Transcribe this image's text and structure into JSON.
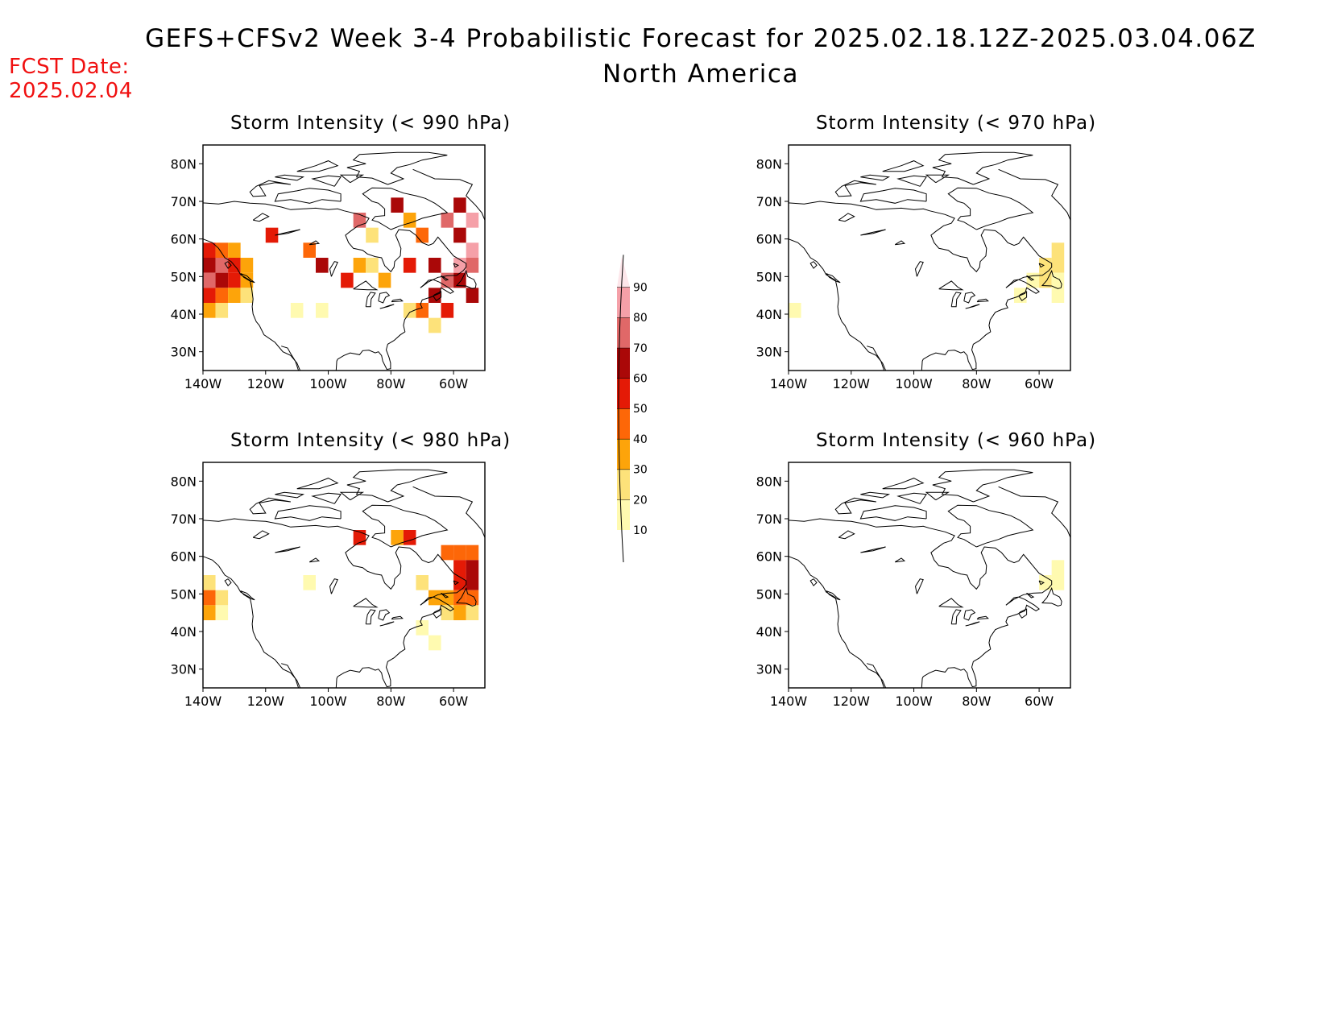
{
  "header": {
    "title": "GEFS+CFSv2 Week 3-4 Probabilistic Forecast for 2025.02.18.12Z-2025.03.04.06Z",
    "subtitle": "North America",
    "fcst_label": "FCST Date:",
    "fcst_value": "2025.02.04"
  },
  "map_axes": {
    "lon_range": [
      -140,
      -50
    ],
    "lat_range": [
      25,
      85
    ],
    "x_ticks": [
      "140W",
      "120W",
      "100W",
      "80W",
      "60W"
    ],
    "y_ticks": [
      "30N",
      "40N",
      "50N",
      "60N",
      "70N",
      "80N"
    ]
  },
  "colors": {
    "coastline": "#000000",
    "bins": [
      "#fffab0",
      "#fde27a",
      "#fda40a",
      "#fd6708",
      "#e41a06",
      "#aa0808",
      "#e06868",
      "#f5a0a8",
      "#fde6ea"
    ]
  },
  "colorbar": {
    "labels": [
      "10",
      "20",
      "30",
      "40",
      "50",
      "60",
      "70",
      "80",
      "90"
    ]
  },
  "panels": [
    {
      "id": "p990",
      "title": "Storm Intensity (< 990 hPa)",
      "cells": [
        {
          "lon": -138,
          "lat": 57,
          "v": 50
        },
        {
          "lon": -134,
          "lat": 57,
          "v": 40
        },
        {
          "lon": -130,
          "lat": 57,
          "v": 30
        },
        {
          "lon": -138,
          "lat": 53,
          "v": 60
        },
        {
          "lon": -134,
          "lat": 53,
          "v": 70
        },
        {
          "lon": -130,
          "lat": 53,
          "v": 50
        },
        {
          "lon": -126,
          "lat": 53,
          "v": 30
        },
        {
          "lon": -138,
          "lat": 49,
          "v": 70
        },
        {
          "lon": -134,
          "lat": 49,
          "v": 60
        },
        {
          "lon": -130,
          "lat": 49,
          "v": 50
        },
        {
          "lon": -126,
          "lat": 49,
          "v": 30
        },
        {
          "lon": -138,
          "lat": 45,
          "v": 50
        },
        {
          "lon": -134,
          "lat": 45,
          "v": 40
        },
        {
          "lon": -130,
          "lat": 45,
          "v": 30
        },
        {
          "lon": -126,
          "lat": 45,
          "v": 20
        },
        {
          "lon": -138,
          "lat": 41,
          "v": 30
        },
        {
          "lon": -134,
          "lat": 41,
          "v": 20
        },
        {
          "lon": -118,
          "lat": 61,
          "v": 50
        },
        {
          "lon": -106,
          "lat": 57,
          "v": 40
        },
        {
          "lon": -102,
          "lat": 53,
          "v": 60
        },
        {
          "lon": -110,
          "lat": 41,
          "v": 10
        },
        {
          "lon": -102,
          "lat": 41,
          "v": 10
        },
        {
          "lon": -90,
          "lat": 65,
          "v": 70
        },
        {
          "lon": -86,
          "lat": 61,
          "v": 20
        },
        {
          "lon": -78,
          "lat": 69,
          "v": 60
        },
        {
          "lon": -74,
          "lat": 65,
          "v": 30
        },
        {
          "lon": -70,
          "lat": 61,
          "v": 40
        },
        {
          "lon": -90,
          "lat": 53,
          "v": 30
        },
        {
          "lon": -86,
          "lat": 53,
          "v": 20
        },
        {
          "lon": -82,
          "lat": 49,
          "v": 30
        },
        {
          "lon": -94,
          "lat": 49,
          "v": 50
        },
        {
          "lon": -74,
          "lat": 53,
          "v": 50
        },
        {
          "lon": -66,
          "lat": 53,
          "v": 60
        },
        {
          "lon": -62,
          "lat": 49,
          "v": 70
        },
        {
          "lon": -58,
          "lat": 49,
          "v": 60
        },
        {
          "lon": -54,
          "lat": 45,
          "v": 60
        },
        {
          "lon": -66,
          "lat": 45,
          "v": 60
        },
        {
          "lon": -62,
          "lat": 41,
          "v": 50
        },
        {
          "lon": -70,
          "lat": 41,
          "v": 40
        },
        {
          "lon": -74,
          "lat": 41,
          "v": 20
        },
        {
          "lon": -66,
          "lat": 37,
          "v": 20
        },
        {
          "lon": -58,
          "lat": 69,
          "v": 60
        },
        {
          "lon": -62,
          "lat": 65,
          "v": 70
        },
        {
          "lon": -54,
          "lat": 65,
          "v": 80
        },
        {
          "lon": -58,
          "lat": 61,
          "v": 60
        },
        {
          "lon": -54,
          "lat": 57,
          "v": 80
        },
        {
          "lon": -58,
          "lat": 53,
          "v": 80
        },
        {
          "lon": -54,
          "lat": 53,
          "v": 70
        }
      ]
    },
    {
      "id": "p970",
      "title": "Storm Intensity (< 970 hPa)",
      "cells": [
        {
          "lon": -54,
          "lat": 57,
          "v": 20
        },
        {
          "lon": -58,
          "lat": 53,
          "v": 20
        },
        {
          "lon": -54,
          "lat": 53,
          "v": 20
        },
        {
          "lon": -62,
          "lat": 49,
          "v": 10
        },
        {
          "lon": -58,
          "lat": 49,
          "v": 20
        },
        {
          "lon": -54,
          "lat": 49,
          "v": 10
        },
        {
          "lon": -66,
          "lat": 45,
          "v": 10
        },
        {
          "lon": -54,
          "lat": 45,
          "v": 10
        },
        {
          "lon": -138,
          "lat": 41,
          "v": 10
        }
      ]
    },
    {
      "id": "p980",
      "title": "Storm Intensity (< 980 hPa)",
      "cells": [
        {
          "lon": -138,
          "lat": 53,
          "v": 20
        },
        {
          "lon": -138,
          "lat": 49,
          "v": 40
        },
        {
          "lon": -134,
          "lat": 49,
          "v": 20
        },
        {
          "lon": -138,
          "lat": 45,
          "v": 30
        },
        {
          "lon": -134,
          "lat": 45,
          "v": 10
        },
        {
          "lon": -90,
          "lat": 65,
          "v": 50
        },
        {
          "lon": -78,
          "lat": 65,
          "v": 30
        },
        {
          "lon": -74,
          "lat": 65,
          "v": 50
        },
        {
          "lon": -62,
          "lat": 61,
          "v": 40
        },
        {
          "lon": -58,
          "lat": 61,
          "v": 40
        },
        {
          "lon": -54,
          "lat": 61,
          "v": 40
        },
        {
          "lon": -58,
          "lat": 57,
          "v": 50
        },
        {
          "lon": -54,
          "lat": 57,
          "v": 60
        },
        {
          "lon": -70,
          "lat": 53,
          "v": 20
        },
        {
          "lon": -58,
          "lat": 53,
          "v": 50
        },
        {
          "lon": -54,
          "lat": 53,
          "v": 60
        },
        {
          "lon": -66,
          "lat": 49,
          "v": 30
        },
        {
          "lon": -62,
          "lat": 49,
          "v": 30
        },
        {
          "lon": -58,
          "lat": 49,
          "v": 40
        },
        {
          "lon": -54,
          "lat": 49,
          "v": 40
        },
        {
          "lon": -62,
          "lat": 45,
          "v": 20
        },
        {
          "lon": -58,
          "lat": 45,
          "v": 30
        },
        {
          "lon": -54,
          "lat": 45,
          "v": 20
        },
        {
          "lon": -70,
          "lat": 41,
          "v": 10
        },
        {
          "lon": -66,
          "lat": 37,
          "v": 10
        },
        {
          "lon": -106,
          "lat": 53,
          "v": 10
        }
      ]
    },
    {
      "id": "p960",
      "title": "Storm Intensity (< 960 hPa)",
      "cells": [
        {
          "lon": -54,
          "lat": 57,
          "v": 10
        },
        {
          "lon": -58,
          "lat": 53,
          "v": 10
        },
        {
          "lon": -54,
          "lat": 53,
          "v": 10
        }
      ]
    }
  ]
}
